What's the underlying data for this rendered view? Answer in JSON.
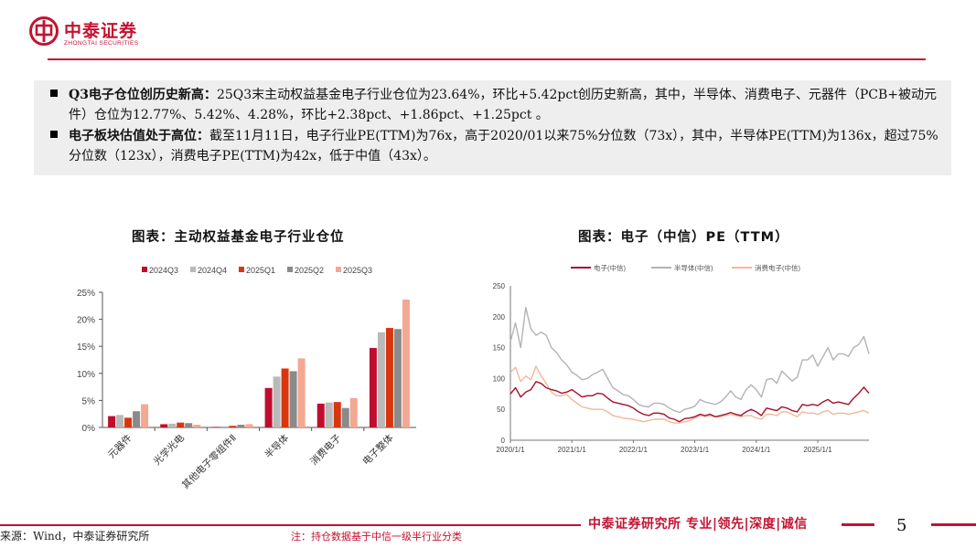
{
  "brand": {
    "name_cn": "中泰证券",
    "name_en": "ZHONGTAI SECURITIES"
  },
  "summary": {
    "bullet1_head": "Q3电子仓位创历史新高：",
    "bullet1_text": "25Q3末主动权益基金电子行业仓位为23.64%，环比+5.42pct创历史新高，其中，半导体、消费电子、元器件（PCB+被动元件）仓位为12.77%、5.42%、4.28%，环比+2.38pct、+1.86pct、+1.25pct 。",
    "bullet2_head": "电子板块估值处于高位：",
    "bullet2_text": "截至11月11日，电子行业PE(TTM)为76x，高于2020/01以来75%分位数（73x），其中，半导体PE(TTM)为136x，超过75%分位数（123x），消费电子PE(TTM)为42x，低于中值（43x）。"
  },
  "chart1_title": "图表：主动权益基金电子行业仓位",
  "chart2_title": "图表：电子（中信）PE（TTM）",
  "chart_data": [
    {
      "type": "bar",
      "title": "图表：主动权益基金电子行业仓位",
      "categories": [
        "元器件",
        "光学光电",
        "其他电子零组件Ⅱ",
        "半导体",
        "消费电子",
        "电子整体"
      ],
      "series": [
        {
          "name": "2024Q3",
          "color": "#c00d2e",
          "values": [
            2.1,
            0.6,
            0.1,
            7.3,
            4.4,
            14.7
          ]
        },
        {
          "name": "2024Q4",
          "color": "#b9b9b9",
          "values": [
            2.3,
            0.7,
            0.2,
            9.4,
            4.6,
            17.6
          ]
        },
        {
          "name": "2025Q1",
          "color": "#d9360e",
          "values": [
            1.8,
            0.9,
            0.3,
            10.9,
            4.7,
            18.4
          ]
        },
        {
          "name": "2025Q2",
          "color": "#8a8a8a",
          "values": [
            3.0,
            0.8,
            0.5,
            10.4,
            3.6,
            18.2
          ]
        },
        {
          "name": "2025Q3",
          "color": "#f4a791",
          "values": [
            4.28,
            0.5,
            0.6,
            12.77,
            5.42,
            23.64
          ]
        }
      ],
      "yticks": [
        "25%",
        "20%",
        "15%",
        "10%",
        "5%",
        "0%"
      ],
      "ylim": [
        0,
        25
      ],
      "legend_position": "top"
    },
    {
      "type": "line",
      "title": "图表：电子（中信）PE（TTM）",
      "x": [
        "2020-01",
        "2020-02",
        "2020-03",
        "2020-04",
        "2020-05",
        "2020-06",
        "2020-07",
        "2020-08",
        "2020-09",
        "2020-10",
        "2020-11",
        "2020-12",
        "2021-01",
        "2021-02",
        "2021-03",
        "2021-04",
        "2021-05",
        "2021-06",
        "2021-07",
        "2021-08",
        "2021-09",
        "2021-10",
        "2021-11",
        "2021-12",
        "2022-01",
        "2022-02",
        "2022-03",
        "2022-04",
        "2022-05",
        "2022-06",
        "2022-07",
        "2022-08",
        "2022-09",
        "2022-10",
        "2022-11",
        "2022-12",
        "2023-01",
        "2023-02",
        "2023-03",
        "2023-04",
        "2023-05",
        "2023-06",
        "2023-07",
        "2023-08",
        "2023-09",
        "2023-10",
        "2023-11",
        "2023-12",
        "2024-01",
        "2024-02",
        "2024-03",
        "2024-04",
        "2024-05",
        "2024-06",
        "2024-07",
        "2024-08",
        "2024-09",
        "2024-10",
        "2024-11",
        "2024-12",
        "2025-01",
        "2025-02",
        "2025-03",
        "2025-04",
        "2025-05",
        "2025-06",
        "2025-07",
        "2025-08",
        "2025-09",
        "2025-10",
        "2025-11"
      ],
      "series": [
        {
          "name": "电子(中信)",
          "color": "#a50f2d",
          "values": [
            75,
            85,
            70,
            78,
            82,
            95,
            92,
            85,
            82,
            80,
            76,
            78,
            82,
            76,
            70,
            72,
            72,
            76,
            75,
            68,
            62,
            60,
            58,
            56,
            52,
            46,
            42,
            40,
            44,
            44,
            42,
            36,
            34,
            30,
            35,
            36,
            38,
            42,
            40,
            42,
            38,
            40,
            42,
            45,
            42,
            40,
            46,
            50,
            46,
            40,
            52,
            50,
            48,
            54,
            52,
            48,
            46,
            58,
            56,
            58,
            56,
            62,
            66,
            60,
            62,
            60,
            58,
            68,
            76,
            86,
            76
          ]
        },
        {
          "name": "半导体(中信)",
          "color": "#b3b3b3",
          "values": [
            160,
            190,
            150,
            215,
            180,
            170,
            175,
            170,
            150,
            142,
            130,
            122,
            110,
            105,
            98,
            100,
            106,
            110,
            115,
            100,
            85,
            80,
            74,
            72,
            66,
            58,
            55,
            54,
            60,
            60,
            58,
            52,
            48,
            45,
            50,
            52,
            55,
            66,
            62,
            60,
            58,
            62,
            70,
            80,
            70,
            66,
            82,
            90,
            82,
            70,
            98,
            100,
            92,
            112,
            104,
            96,
            102,
            130,
            130,
            138,
            120,
            135,
            150,
            130,
            140,
            140,
            136,
            150,
            155,
            168,
            140
          ]
        },
        {
          "name": "消费电子(中信)",
          "color": "#f1b79c",
          "values": [
            110,
            118,
            95,
            104,
            98,
            120,
            104,
            92,
            78,
            72,
            72,
            74,
            66,
            60,
            54,
            52,
            50,
            50,
            50,
            46,
            40,
            38,
            36,
            35,
            34,
            32,
            30,
            32,
            34,
            34,
            34,
            30,
            28,
            28,
            30,
            32,
            36,
            40,
            38,
            40,
            38,
            38,
            40,
            42,
            40,
            38,
            40,
            40,
            36,
            34,
            42,
            42,
            40,
            46,
            46,
            42,
            38,
            46,
            44,
            44,
            42,
            46,
            48,
            42,
            44,
            44,
            42,
            44,
            46,
            48,
            44
          ]
        }
      ],
      "xticks": [
        "2020/1/1",
        "2021/1/1",
        "2022/1/1",
        "2023/1/1",
        "2024/1/1",
        "2025/1/1"
      ],
      "yticks": [
        "250",
        "200",
        "150",
        "100",
        "50",
        "0"
      ],
      "ylim": [
        0,
        250
      ],
      "legend_position": "top"
    }
  ],
  "footer": {
    "brand": "中泰证券研究所 专业|领先|深度|诚信",
    "page": "5",
    "source": "来源：Wind，中泰证券研究所",
    "note": "注：持仓数据基于中信一级半行业分类"
  }
}
